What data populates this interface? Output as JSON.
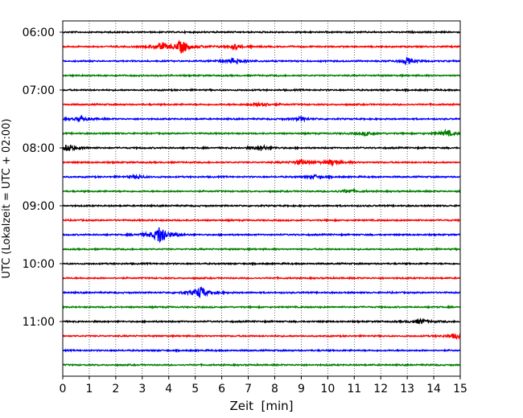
{
  "chart_data": {
    "type": "line",
    "title": "",
    "xlabel": "Zeit  [min]",
    "ylabel": "UTC (Lokalzeit = UTC + 02:00)",
    "xlim": [
      0,
      15
    ],
    "x_ticks": [
      "0",
      "1",
      "2",
      "3",
      "4",
      "5",
      "6",
      "7",
      "8",
      "9",
      "10",
      "11",
      "12",
      "13",
      "14",
      "15"
    ],
    "y_ticks": [
      "06:00",
      "07:00",
      "08:00",
      "09:00",
      "10:00",
      "11:00"
    ],
    "row_interval_minutes": 15,
    "grid": "vertical dotted",
    "row_colors": [
      "#000000",
      "#ff0000",
      "#0000ff",
      "#008000"
    ],
    "rows": [
      {
        "time": "06:00",
        "events": []
      },
      {
        "time": "06:15",
        "events": [
          {
            "minute": 4.5,
            "amplitude": 0.55
          },
          {
            "minute": 3.7,
            "amplitude": 0.25
          },
          {
            "minute": 6.5,
            "amplitude": 0.2
          }
        ]
      },
      {
        "time": "06:30",
        "events": [
          {
            "minute": 6.5,
            "amplitude": 0.3
          },
          {
            "minute": 13.0,
            "amplitude": 0.25
          }
        ]
      },
      {
        "time": "06:45",
        "events": []
      },
      {
        "time": "07:00",
        "events": []
      },
      {
        "time": "07:15",
        "events": [
          {
            "minute": 7.5,
            "amplitude": 0.2
          }
        ]
      },
      {
        "time": "07:30",
        "events": [
          {
            "minute": 0.7,
            "amplitude": 0.2
          },
          {
            "minute": 9.0,
            "amplitude": 0.15
          }
        ]
      },
      {
        "time": "07:45",
        "events": [
          {
            "minute": 14.5,
            "amplitude": 0.25
          },
          {
            "minute": 11.5,
            "amplitude": 0.15
          }
        ]
      },
      {
        "time": "08:00",
        "events": [
          {
            "minute": 0.2,
            "amplitude": 0.3
          },
          {
            "minute": 7.5,
            "amplitude": 0.2
          }
        ]
      },
      {
        "time": "08:15",
        "events": [
          {
            "minute": 10.2,
            "amplitude": 0.25
          },
          {
            "minute": 9.0,
            "amplitude": 0.2
          }
        ]
      },
      {
        "time": "08:30",
        "events": [
          {
            "minute": 2.8,
            "amplitude": 0.15
          },
          {
            "minute": 9.5,
            "amplitude": 0.15
          }
        ]
      },
      {
        "time": "08:45",
        "events": [
          {
            "minute": 10.8,
            "amplitude": 0.15
          }
        ]
      },
      {
        "time": "09:00",
        "events": []
      },
      {
        "time": "09:15",
        "events": []
      },
      {
        "time": "09:30",
        "events": [
          {
            "minute": 3.7,
            "amplitude": 0.85
          }
        ]
      },
      {
        "time": "09:45",
        "events": []
      },
      {
        "time": "10:00",
        "events": []
      },
      {
        "time": "10:15",
        "events": []
      },
      {
        "time": "10:30",
        "events": [
          {
            "minute": 5.2,
            "amplitude": 0.5
          }
        ]
      },
      {
        "time": "10:45",
        "events": []
      },
      {
        "time": "11:00",
        "events": [
          {
            "minute": 13.5,
            "amplitude": 0.2
          }
        ]
      },
      {
        "time": "11:15",
        "events": [
          {
            "minute": 14.8,
            "amplitude": 0.2
          }
        ]
      },
      {
        "time": "11:30",
        "events": []
      },
      {
        "time": "11:45",
        "events": []
      }
    ]
  }
}
